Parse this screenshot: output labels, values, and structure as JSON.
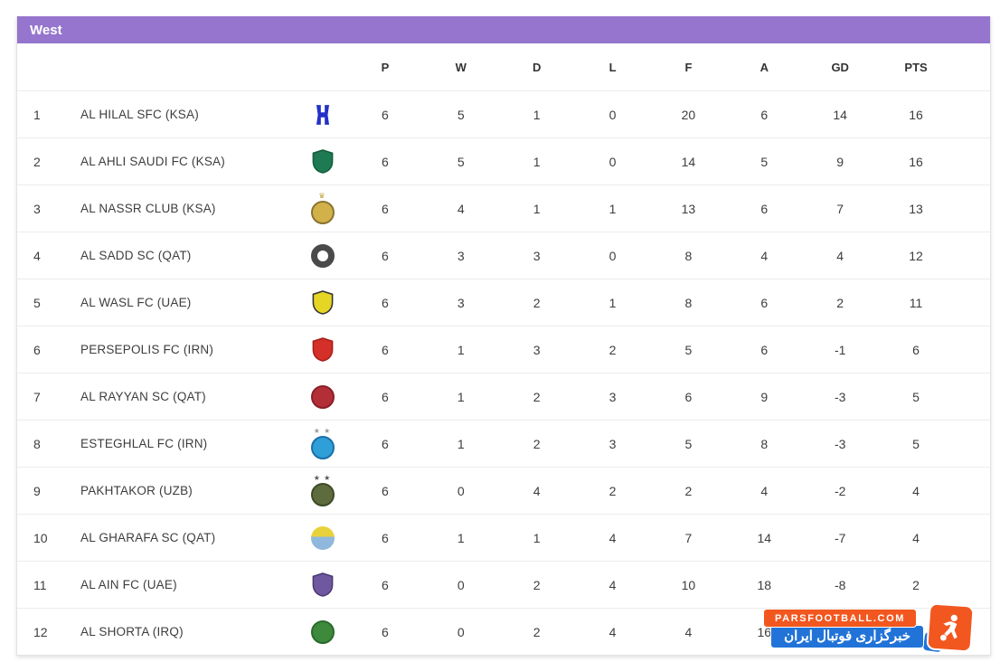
{
  "header": {
    "title": "West",
    "bar_color": "#9575cd"
  },
  "columns": [
    "P",
    "W",
    "D",
    "L",
    "F",
    "A",
    "GD",
    "PTS"
  ],
  "rows": [
    {
      "rank": "1",
      "team": "AL HILAL SFC (KSA)",
      "logo": {
        "name": "al-hilal-crest-icon",
        "shape": "hilal",
        "primary": "#2430c8",
        "secondary": "#ffffff",
        "above": "",
        "above_color": ""
      },
      "stats": [
        "6",
        "5",
        "1",
        "0",
        "20",
        "6",
        "14",
        "16"
      ]
    },
    {
      "rank": "2",
      "team": "AL AHLI SAUDI FC (KSA)",
      "logo": {
        "name": "al-ahli-crest-icon",
        "shape": "shield",
        "primary": "#1e7a52",
        "secondary": "#145c3c",
        "above": "",
        "above_color": ""
      },
      "stats": [
        "6",
        "5",
        "1",
        "0",
        "14",
        "5",
        "9",
        "16"
      ]
    },
    {
      "rank": "3",
      "team": "AL NASSR CLUB (KSA)",
      "logo": {
        "name": "al-nassr-crest-icon",
        "shape": "circle",
        "primary": "#d2b14a",
        "secondary": "#8a7430",
        "above": "♛",
        "above_color": "#c2a23c"
      },
      "stats": [
        "6",
        "4",
        "1",
        "1",
        "13",
        "6",
        "7",
        "13"
      ]
    },
    {
      "rank": "4",
      "team": "AL SADD SC (QAT)",
      "logo": {
        "name": "al-sadd-crest-icon",
        "shape": "ring",
        "primary": "#4a4a4a",
        "secondary": "#ffffff",
        "above": "",
        "above_color": ""
      },
      "stats": [
        "6",
        "3",
        "3",
        "0",
        "8",
        "4",
        "4",
        "12"
      ]
    },
    {
      "rank": "5",
      "team": "AL WASL FC (UAE)",
      "logo": {
        "name": "al-wasl-crest-icon",
        "shape": "shield",
        "primary": "#e5d525",
        "secondary": "#333333",
        "above": "",
        "above_color": ""
      },
      "stats": [
        "6",
        "3",
        "2",
        "1",
        "8",
        "6",
        "2",
        "11"
      ]
    },
    {
      "rank": "6",
      "team": "PERSEPOLIS FC (IRN)",
      "logo": {
        "name": "persepolis-crest-icon",
        "shape": "shield",
        "primary": "#d42f28",
        "secondary": "#a81f1a",
        "above": "",
        "above_color": ""
      },
      "stats": [
        "6",
        "1",
        "3",
        "2",
        "5",
        "6",
        "-1",
        "6"
      ]
    },
    {
      "rank": "7",
      "team": "AL RAYYAN SC (QAT)",
      "logo": {
        "name": "al-rayyan-crest-icon",
        "shape": "circle",
        "primary": "#b22f38",
        "secondary": "#8a1f28",
        "above": "",
        "above_color": ""
      },
      "stats": [
        "6",
        "1",
        "2",
        "3",
        "6",
        "9",
        "-3",
        "5"
      ]
    },
    {
      "rank": "8",
      "team": "ESTEGHLAL FC (IRN)",
      "logo": {
        "name": "esteghlal-crest-icon",
        "shape": "circle",
        "primary": "#2f9fd8",
        "secondary": "#1a6fa8",
        "above": "★ ★",
        "above_color": "#9a9a9a"
      },
      "stats": [
        "6",
        "1",
        "2",
        "3",
        "5",
        "8",
        "-3",
        "5"
      ]
    },
    {
      "rank": "9",
      "team": "PAKHTAKOR (UZB)",
      "logo": {
        "name": "pakhtakor-crest-icon",
        "shape": "circle",
        "primary": "#5d6b3d",
        "secondary": "#3e4a28",
        "above": "★ ★",
        "above_color": "#555555"
      },
      "stats": [
        "6",
        "0",
        "4",
        "2",
        "2",
        "4",
        "-2",
        "4"
      ]
    },
    {
      "rank": "10",
      "team": "AL GHARAFA SC (QAT)",
      "logo": {
        "name": "al-gharafa-crest-icon",
        "shape": "twotone",
        "primary": "#e8d23c",
        "secondary": "#8fb8dc",
        "above": "",
        "above_color": ""
      },
      "stats": [
        "6",
        "1",
        "1",
        "4",
        "7",
        "14",
        "-7",
        "4"
      ]
    },
    {
      "rank": "11",
      "team": "AL AIN FC (UAE)",
      "logo": {
        "name": "al-ain-crest-icon",
        "shape": "shield",
        "primary": "#6f58a0",
        "secondary": "#4a3a70",
        "above": "",
        "above_color": ""
      },
      "stats": [
        "6",
        "0",
        "2",
        "4",
        "10",
        "18",
        "-8",
        "2"
      ]
    },
    {
      "rank": "12",
      "team": "AL SHORTA (IRQ)",
      "logo": {
        "name": "al-shorta-crest-icon",
        "shape": "circle",
        "primary": "#3d8a3d",
        "secondary": "#2a6a2a",
        "above": "",
        "above_color": ""
      },
      "stats": [
        "6",
        "0",
        "2",
        "4",
        "4",
        "16",
        "",
        ""
      ]
    }
  ],
  "watermark": {
    "site": "PARSFOOTBALL.COM",
    "tagline": "خبرگزاری فوتبال ایران",
    "orange": "#f2571f",
    "blue": "#2273d8"
  }
}
